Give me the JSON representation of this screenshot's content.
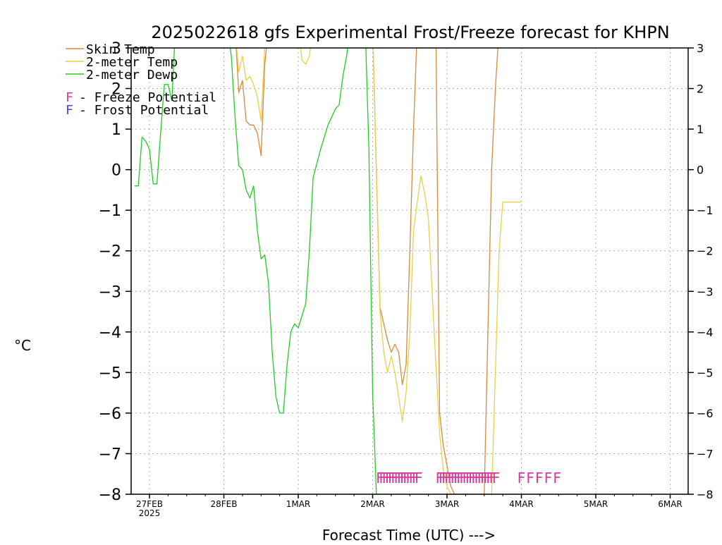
{
  "chart_data": {
    "type": "line",
    "title": "2025022618 gfs Experimental Frost/Freeze forecast for KHPN",
    "xlabel": "Forecast Time (UTC) --->",
    "ylabel": "°C",
    "ylim": [
      -8,
      3
    ],
    "yticks": [
      -8,
      -7,
      -6,
      -5,
      -4,
      -3,
      -2,
      -1,
      0,
      1,
      2,
      3
    ],
    "xlim_hours": [
      -16,
      0
    ],
    "grid": true,
    "legend_position": "top-left",
    "x_ticks": [
      {
        "label": "27FEB",
        "sublabel": "2025",
        "day": 0
      },
      {
        "label": "28FEB",
        "sublabel": "",
        "day": 1
      },
      {
        "label": "1MAR",
        "sublabel": "",
        "day": 2
      },
      {
        "label": "2MAR",
        "sublabel": "",
        "day": 3
      },
      {
        "label": "3MAR",
        "sublabel": "",
        "day": 4
      },
      {
        "label": "4MAR",
        "sublabel": "",
        "day": 5
      },
      {
        "label": "5MAR",
        "sublabel": "",
        "day": 6
      },
      {
        "label": "6MAR",
        "sublabel": "",
        "day": 7
      }
    ],
    "series": [
      {
        "name": "Skin Temp",
        "color": "#d9893e",
        "day": [
          -0.2,
          -0.15,
          -0.1,
          -0.05,
          0.0,
          0.05,
          0.1,
          0.15,
          0.2,
          0.25,
          0.3,
          0.35,
          0.4,
          0.5,
          1.1,
          1.15,
          1.2,
          1.25,
          1.3,
          1.35,
          1.4,
          1.45,
          1.5,
          1.55,
          1.6,
          1.65,
          1.7,
          1.75,
          1.8,
          1.95,
          2.0,
          2.05,
          2.1,
          2.15,
          2.2,
          2.25,
          2.3,
          2.35,
          2.4,
          2.5,
          2.6,
          2.7,
          2.8,
          2.9,
          3.0,
          3.05,
          3.1,
          3.15,
          3.2,
          3.25,
          3.3,
          3.35,
          3.4,
          3.45,
          3.5,
          3.55,
          3.6,
          3.65,
          3.7,
          3.75,
          3.8,
          3.85,
          3.9,
          3.95,
          4.0,
          4.05,
          4.1,
          4.15,
          4.2,
          4.25,
          4.3,
          4.35,
          4.4,
          4.45,
          4.5,
          4.55,
          4.6,
          4.65,
          4.7,
          4.75,
          4.8,
          4.9
        ],
        "values": [
          3.5,
          3.5,
          3.5,
          3.5,
          3.5,
          3.5,
          3.5,
          3.5,
          3.5,
          3.5,
          3.5,
          3.5,
          3.5,
          3.5,
          3.5,
          3.5,
          1.9,
          2.2,
          1.2,
          1.1,
          1.1,
          0.9,
          0.35,
          2.6,
          3.5,
          3.5,
          3.5,
          3.5,
          3.5,
          3.5,
          3.5,
          3.5,
          3.5,
          3.5,
          3.5,
          3.5,
          3.5,
          3.5,
          3.5,
          3.5,
          3.5,
          3.5,
          3.5,
          3.5,
          3.5,
          0.0,
          -3.4,
          -3.8,
          -4.2,
          -4.5,
          -4.3,
          -4.5,
          -5.3,
          -4.8,
          -2.0,
          1.0,
          3.5,
          3.5,
          3.5,
          3.5,
          3.5,
          3.5,
          -6.0,
          -6.8,
          -7.3,
          -7.8,
          -8.0,
          -8.0,
          -8.0,
          -8.0,
          -8.0,
          -8.0,
          -8.0,
          -8.0,
          -8.0,
          -4.0,
          0.0,
          2.0,
          3.5,
          3.5,
          3.5,
          3.5
        ]
      },
      {
        "name": "2-meter Temp",
        "color": "#e8d048",
        "day": [
          -0.2,
          -0.1,
          0.0,
          0.1,
          0.2,
          0.3,
          0.35,
          0.4,
          0.5,
          1.1,
          1.15,
          1.2,
          1.25,
          1.3,
          1.35,
          1.4,
          1.45,
          1.5,
          1.55,
          1.6,
          1.7,
          1.8,
          1.9,
          2.0,
          2.05,
          2.1,
          2.15,
          2.2,
          2.25,
          2.3,
          2.4,
          2.5,
          2.6,
          2.7,
          2.8,
          2.9,
          3.0,
          3.05,
          3.1,
          3.15,
          3.2,
          3.25,
          3.3,
          3.35,
          3.4,
          3.45,
          3.5,
          3.55,
          3.6,
          3.65,
          3.7,
          3.75,
          3.8,
          3.85,
          3.9,
          3.95,
          4.0,
          4.05,
          4.1,
          4.15,
          4.2,
          4.25,
          4.3,
          4.35,
          4.4,
          4.45,
          4.5,
          4.55,
          4.6,
          4.65,
          4.7,
          4.75,
          4.8,
          4.85,
          4.9,
          4.95,
          5.0
        ],
        "values": [
          3.5,
          3.5,
          3.5,
          3.5,
          3.5,
          3.5,
          3.1,
          3.5,
          3.5,
          3.5,
          3.5,
          2.4,
          2.8,
          2.2,
          2.3,
          2.1,
          1.8,
          1.2,
          3.0,
          3.5,
          3.5,
          3.5,
          3.5,
          3.5,
          2.7,
          2.6,
          2.8,
          3.5,
          3.5,
          3.5,
          3.5,
          3.5,
          3.5,
          3.5,
          3.5,
          3.5,
          3.5,
          0.0,
          -3.5,
          -4.5,
          -5.0,
          -4.6,
          -5.0,
          -5.6,
          -6.2,
          -5.5,
          -4.0,
          -1.5,
          -0.8,
          -0.15,
          -0.6,
          -1.2,
          -3.0,
          -4.8,
          -6.5,
          -7.4,
          -7.8,
          -8.0,
          -8.0,
          -8.0,
          -8.0,
          -8.0,
          -8.0,
          -8.0,
          -8.0,
          -8.0,
          -8.0,
          -8.0,
          -8.0,
          -5.0,
          -2.0,
          -0.8,
          -0.8,
          -0.8,
          -0.8,
          -0.8,
          -0.8
        ]
      },
      {
        "name": "2-meter Dewp",
        "color": "#22cc22",
        "day": [
          -0.2,
          -0.15,
          -0.1,
          -0.05,
          0.0,
          0.05,
          0.1,
          0.15,
          0.2,
          0.25,
          0.3,
          0.35,
          0.4,
          0.45,
          0.5,
          0.55,
          0.6,
          0.65,
          0.7,
          0.75,
          0.8,
          0.85,
          0.9,
          0.95,
          1.0,
          1.05,
          1.1,
          1.15,
          1.2,
          1.25,
          1.3,
          1.35,
          1.4,
          1.45,
          1.5,
          1.55,
          1.6,
          1.65,
          1.7,
          1.75,
          1.8,
          1.85,
          1.9,
          1.95,
          2.0,
          2.05,
          2.1,
          2.15,
          2.2,
          2.3,
          2.4,
          2.45,
          2.5,
          2.55,
          2.6,
          2.65,
          2.7,
          2.75,
          2.8,
          2.85,
          2.9,
          2.95,
          3.0,
          3.05,
          3.1
        ],
        "values": [
          -0.4,
          -0.4,
          0.8,
          0.7,
          0.5,
          -0.35,
          -0.35,
          0.9,
          2.1,
          2.1,
          1.7,
          3.5,
          3.5,
          3.5,
          3.5,
          3.5,
          3.5,
          3.5,
          3.5,
          3.5,
          3.5,
          3.5,
          3.5,
          3.5,
          3.5,
          3.5,
          2.8,
          1.3,
          0.1,
          0.0,
          -0.5,
          -0.7,
          -0.4,
          -1.5,
          -2.2,
          -2.1,
          -2.8,
          -4.5,
          -5.6,
          -6.0,
          -6.0,
          -4.8,
          -4.0,
          -3.8,
          -3.9,
          -3.6,
          -3.3,
          -2.0,
          -0.2,
          0.5,
          1.1,
          1.3,
          1.5,
          1.6,
          2.3,
          2.8,
          3.5,
          3.5,
          3.5,
          3.5,
          3.5,
          0.5,
          -5.5,
          -8.0,
          -8.0
        ]
      }
    ],
    "legend": [
      {
        "label": "Skin Temp",
        "color": "#d9893e"
      },
      {
        "label": "2-meter Temp",
        "color": "#e8d048"
      },
      {
        "label": "2-meter Dewp",
        "color": "#22cc22"
      }
    ],
    "potential_legend": [
      {
        "letter": "F",
        "text": "- Freeze Potential",
        "color": "#d63a9c"
      },
      {
        "letter": "F",
        "text": "- Frost Potential",
        "color": "#4444ee"
      }
    ],
    "freeze_markers": {
      "color": "#d63a9c",
      "level": -7.55,
      "days": [
        3.1,
        3.14,
        3.18,
        3.22,
        3.26,
        3.3,
        3.34,
        3.38,
        3.42,
        3.46,
        3.5,
        3.54,
        3.58,
        3.62,
        3.9,
        3.94,
        3.98,
        4.02,
        4.06,
        4.1,
        4.14,
        4.18,
        4.22,
        4.26,
        4.3,
        4.34,
        4.38,
        4.42,
        4.46,
        4.5,
        4.54,
        4.58,
        4.62,
        4.66,
        5.0,
        5.12,
        5.24,
        5.36,
        5.48
      ]
    }
  }
}
